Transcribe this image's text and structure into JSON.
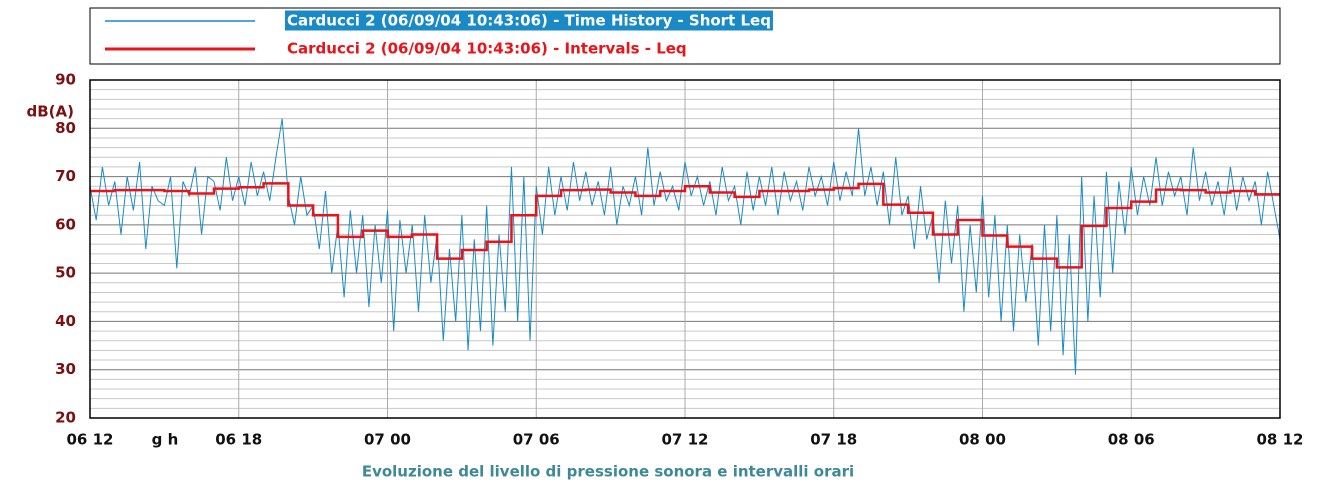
{
  "chart_data": {
    "type": "line",
    "ylabel": "dB(A)",
    "xlabel": "Evoluzione del livello di pressione sonora e intervalli orari",
    "xunit": "g h",
    "xlim": [
      0,
      48
    ],
    "xticks": [
      {
        "value": 0,
        "label": "06 12"
      },
      {
        "value": 6,
        "label": "06 18"
      },
      {
        "value": 12,
        "label": "07 00"
      },
      {
        "value": 18,
        "label": "07 06"
      },
      {
        "value": 24,
        "label": "07 12"
      },
      {
        "value": 30,
        "label": "07 18"
      },
      {
        "value": 36,
        "label": "08 00"
      },
      {
        "value": 42,
        "label": "08 06"
      },
      {
        "value": 48,
        "label": "08 12"
      }
    ],
    "ylim": [
      20,
      90
    ],
    "yticks": [
      20,
      30,
      40,
      50,
      60,
      70,
      80,
      90
    ],
    "minor_yticks": [
      22,
      24,
      26,
      28,
      32,
      34,
      36,
      38,
      42,
      44,
      46,
      48,
      52,
      54,
      56,
      58,
      62,
      64,
      66,
      68,
      72,
      74,
      76,
      78,
      82,
      84,
      86,
      88
    ],
    "grid": true,
    "legend": "top",
    "x": [
      0,
      0.25,
      0.5,
      0.75,
      1,
      1.25,
      1.5,
      1.75,
      2,
      2.25,
      2.5,
      2.75,
      3,
      3.25,
      3.5,
      3.75,
      4,
      4.25,
      4.5,
      4.75,
      5,
      5.25,
      5.5,
      5.75,
      6,
      6.25,
      6.5,
      6.75,
      7,
      7.25,
      7.5,
      7.75,
      8,
      8.25,
      8.5,
      8.75,
      9,
      9.25,
      9.5,
      9.75,
      10,
      10.25,
      10.5,
      10.75,
      11,
      11.25,
      11.5,
      11.75,
      12,
      12.25,
      12.5,
      12.75,
      13,
      13.25,
      13.5,
      13.75,
      14,
      14.25,
      14.5,
      14.75,
      15,
      15.25,
      15.5,
      15.75,
      16,
      16.25,
      16.5,
      16.75,
      17,
      17.25,
      17.5,
      17.75,
      18,
      18.25,
      18.5,
      18.75,
      19,
      19.25,
      19.5,
      19.75,
      20,
      20.25,
      20.5,
      20.75,
      21,
      21.25,
      21.5,
      21.75,
      22,
      22.25,
      22.5,
      22.75,
      23,
      23.25,
      23.5,
      23.75,
      24,
      24.25,
      24.5,
      24.75,
      25,
      25.25,
      25.5,
      25.75,
      26,
      26.25,
      26.5,
      26.75,
      27,
      27.25,
      27.5,
      27.75,
      28,
      28.25,
      28.5,
      28.75,
      29,
      29.25,
      29.5,
      29.75,
      30,
      30.25,
      30.5,
      30.75,
      31,
      31.25,
      31.5,
      31.75,
      32,
      32.25,
      32.5,
      32.75,
      33,
      33.25,
      33.5,
      33.75,
      34,
      34.25,
      34.5,
      34.75,
      35,
      35.25,
      35.5,
      35.75,
      36,
      36.25,
      36.5,
      36.75,
      37,
      37.25,
      37.5,
      37.75,
      38,
      38.25,
      38.5,
      38.75,
      39,
      39.25,
      39.5,
      39.75,
      40,
      40.25,
      40.5,
      40.75,
      41,
      41.25,
      41.5,
      41.75,
      42,
      42.25,
      42.5,
      42.75,
      43,
      43.25,
      43.5,
      43.75,
      44,
      44.25,
      44.5,
      44.75,
      45,
      45.25,
      45.5,
      45.75,
      46,
      46.25,
      46.5,
      46.75,
      47,
      47.25,
      47.5,
      47.75,
      48
    ],
    "series": [
      {
        "name": "Carducci 2 (06/09/04 10:43:06) - Time History - Short Leq",
        "color": "#1a8ac6",
        "values": [
          68,
          61,
          72,
          64,
          69,
          58,
          70,
          63,
          73,
          55,
          68,
          65,
          64,
          70,
          51,
          69,
          66,
          72,
          58,
          70,
          69,
          63,
          74,
          65,
          70,
          64,
          73,
          66,
          71,
          65,
          74,
          82,
          66,
          60,
          70,
          62,
          64,
          55,
          67,
          50,
          60,
          45,
          63,
          50,
          62,
          43,
          60,
          48,
          63,
          38,
          61,
          50,
          60,
          42,
          62,
          48,
          58,
          36,
          55,
          40,
          62,
          34,
          57,
          38,
          64,
          35,
          58,
          42,
          72,
          40,
          70,
          36,
          68,
          58,
          72,
          62,
          70,
          63,
          73,
          65,
          71,
          64,
          69,
          62,
          72,
          60,
          68,
          64,
          70,
          62,
          76,
          64,
          71,
          65,
          68,
          63,
          73,
          66,
          70,
          64,
          69,
          62,
          72,
          65,
          68,
          60,
          71,
          63,
          70,
          64,
          72,
          62,
          71,
          65,
          69,
          63,
          72,
          66,
          70,
          64,
          73,
          65,
          71,
          66,
          80,
          66,
          72,
          64,
          71,
          60,
          74,
          62,
          66,
          55,
          68,
          57,
          62,
          48,
          65,
          52,
          64,
          42,
          60,
          46,
          66,
          45,
          62,
          40,
          60,
          38,
          58,
          44,
          56,
          35,
          60,
          38,
          62,
          33,
          58,
          29,
          70,
          40,
          66,
          45,
          71,
          50,
          69,
          58,
          72,
          62,
          70,
          64,
          74,
          64,
          71,
          66,
          70,
          62,
          76,
          65,
          71,
          64,
          69,
          62,
          72,
          63,
          70,
          65,
          69,
          60,
          71,
          64,
          57
        ]
      },
      {
        "name": "Carducci 2 (06/09/04 10:43:06) - Intervals - Leq",
        "color": "#e8141a",
        "drawstyle": "steps-post",
        "x": [
          0,
          1,
          2,
          3,
          4,
          5,
          6,
          7,
          8,
          9,
          10,
          11,
          12,
          13,
          14,
          15,
          16,
          17,
          18,
          19,
          20,
          21,
          22,
          23,
          24,
          25,
          26,
          27,
          28,
          29,
          30,
          31,
          32,
          33,
          34,
          35,
          36,
          37,
          38,
          39,
          40,
          41,
          42,
          43,
          44,
          45,
          46,
          47
        ],
        "values": [
          67,
          67.2,
          67.2,
          67,
          66.5,
          67.5,
          67.8,
          68.6,
          64,
          62,
          57.5,
          58.8,
          57.5,
          58,
          53,
          54.8,
          56.5,
          62,
          66,
          67.2,
          67.3,
          66.7,
          66,
          67,
          68,
          66.7,
          65.8,
          67,
          67,
          67.3,
          67.6,
          68.5,
          64.2,
          62.5,
          58,
          61,
          57.8,
          55.5,
          53,
          51.2,
          59.8,
          63.5,
          64.8,
          67.3,
          67.2,
          66.7,
          67,
          66.3
        ]
      }
    ]
  }
}
